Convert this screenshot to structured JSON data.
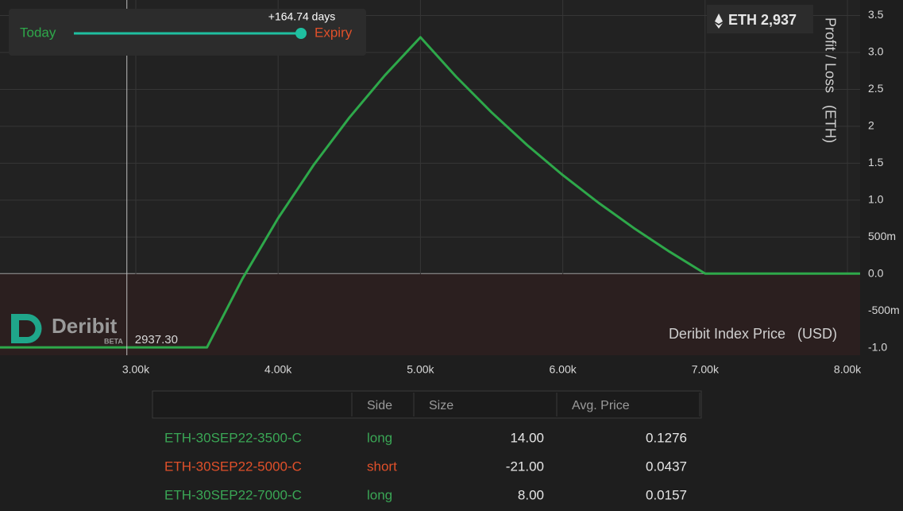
{
  "app": {
    "slider_start": "Today",
    "slider_end": "Expiry",
    "slider_value": "+164.74 days",
    "index_price": "ETH 2,937",
    "logo": "Deribit",
    "logo_badge": "BETA"
  },
  "chart_data": {
    "type": "line",
    "y_label": "Profit / Loss   (ETH)",
    "x_label": "Deribit Index Price   (USD)",
    "x": [
      2046,
      3500,
      3750,
      4000,
      4250,
      4500,
      4750,
      5000,
      5250,
      5500,
      5750,
      6000,
      6250,
      6500,
      6750,
      7000,
      8089
    ],
    "values": [
      -0.994,
      -0.994,
      -0.061,
      0.756,
      1.477,
      2.117,
      2.69,
      3.206,
      2.673,
      2.188,
      1.745,
      1.339,
      0.966,
      0.621,
      0.302,
      0.006,
      0.006
    ],
    "color": "#2ea84a",
    "xlim": [
      2046,
      8089
    ],
    "xticks": [
      {
        "value": 3000,
        "label": "3.00k"
      },
      {
        "value": 4000,
        "label": "4.00k"
      },
      {
        "value": 5000,
        "label": "5.00k"
      },
      {
        "value": 6000,
        "label": "6.00k"
      },
      {
        "value": 7000,
        "label": "7.00k"
      },
      {
        "value": 8000,
        "label": "8.00k"
      }
    ],
    "ylim": [
      -1.1,
      3.71
    ],
    "yticks": [
      {
        "value": -1,
        "label": "-1.0"
      },
      {
        "value": -0.5,
        "label": "-500m"
      },
      {
        "value": 0,
        "label": "0.0"
      },
      {
        "value": 0.5,
        "label": "500m"
      },
      {
        "value": 1,
        "label": "1.0"
      },
      1.5,
      2,
      2.5,
      {
        "value": 3,
        "label": "3.0"
      },
      3.5
    ],
    "grid": true,
    "crosshair": {
      "value": 2937.3,
      "label": "2937.30"
    }
  },
  "table": {
    "headers": [
      "Side",
      "Size",
      "Avg. Price"
    ],
    "rows": [
      [
        "ETH-30SEP22-3500-C",
        "long",
        "14.00",
        "0.1276"
      ],
      [
        "ETH-30SEP22-5000-C",
        "short",
        "-21.00",
        "0.0437"
      ],
      [
        "ETH-30SEP22-7000-C",
        "long",
        "8.00",
        "0.0157"
      ]
    ]
  }
}
